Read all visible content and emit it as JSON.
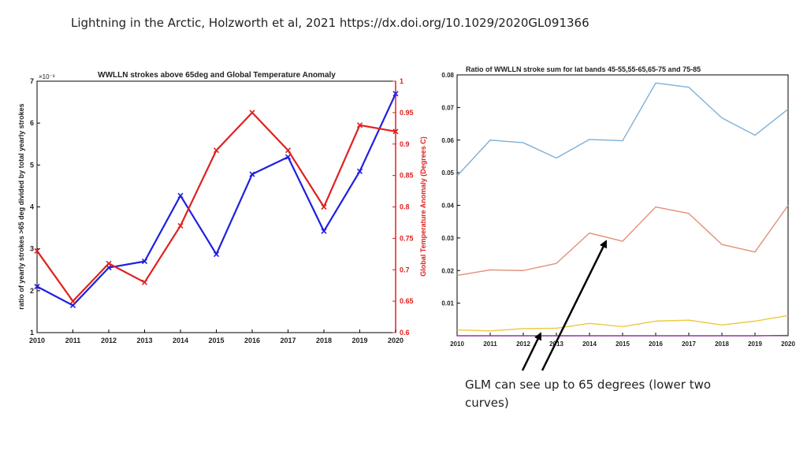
{
  "slide": {
    "title": "Lightning in the Arctic, Holzworth et al, 2021 https://dx.doi.org/10.1029/2020GL091366",
    "caption": "GLM can see up to 65 degrees (lower two curves)"
  },
  "chart_data": [
    {
      "type": "line",
      "title": "WWLLN strokes above 65deg and Global Temperature Anomaly",
      "xlabel": "",
      "ylabel": "ratio of yearly strokes >65 deg divided by total yearly strokes",
      "ylabel_right": "Global Temperature Anomaly (Degrees C)",
      "y_multiplier": "×10⁻³",
      "x": [
        2010,
        2011,
        2012,
        2013,
        2014,
        2015,
        2016,
        2017,
        2018,
        2019,
        2020
      ],
      "xlim": [
        2010,
        2020
      ],
      "ylim": [
        1,
        7
      ],
      "ylim_right": [
        0.6,
        1.0
      ],
      "y_ticks": [
        1,
        2,
        3,
        4,
        5,
        6,
        7
      ],
      "y_ticks_right": [
        0.6,
        0.65,
        0.7,
        0.75,
        0.8,
        0.85,
        0.9,
        0.95,
        1
      ],
      "grid": false,
      "series": [
        {
          "name": "",
          "axis": "left",
          "color": "#1f1fe0",
          "values": [
            2.1,
            1.65,
            2.55,
            2.7,
            4.27,
            2.87,
            4.78,
            5.19,
            3.42,
            4.85,
            6.7
          ]
        },
        {
          "name": "",
          "axis": "right",
          "color": "#e02020",
          "values": [
            0.73,
            0.65,
            0.71,
            0.68,
            0.77,
            0.89,
            0.95,
            0.89,
            0.8,
            0.93,
            0.92
          ]
        }
      ]
    },
    {
      "type": "line",
      "title": "Ratio of WWLLN stroke sum for lat bands 45-55,55-65,65-75 and 75-85",
      "xlabel": "",
      "ylabel": "",
      "x": [
        2010,
        2011,
        2012,
        2013,
        2014,
        2015,
        2016,
        2017,
        2018,
        2019,
        2020
      ],
      "xlim": [
        2010,
        2020
      ],
      "ylim": [
        0,
        0.08
      ],
      "y_ticks": [
        0.01,
        0.02,
        0.03,
        0.04,
        0.05,
        0.06,
        0.07,
        0.08
      ],
      "grid": false,
      "series": [
        {
          "name": "",
          "color": "#7fb0d6",
          "values": [
            0.049,
            0.06,
            0.0592,
            0.0545,
            0.0602,
            0.0598,
            0.0775,
            0.0762,
            0.0668,
            0.0615,
            0.0695
          ]
        },
        {
          "name": "",
          "color": "#e0907a",
          "values": [
            0.0185,
            0.0202,
            0.02,
            0.0222,
            0.0315,
            0.029,
            0.0395,
            0.0375,
            0.028,
            0.0257,
            0.04
          ]
        },
        {
          "name": "",
          "color": "#ecc940",
          "values": [
            0.0018,
            0.0015,
            0.0022,
            0.0023,
            0.0038,
            0.0028,
            0.0045,
            0.0048,
            0.0033,
            0.0045,
            0.0062
          ]
        },
        {
          "name": "",
          "color": "#8a3a9a",
          "values": [
            0,
            0,
            0,
            0,
            0,
            0,
            0,
            0,
            0,
            0,
            0.0001
          ]
        }
      ]
    }
  ]
}
